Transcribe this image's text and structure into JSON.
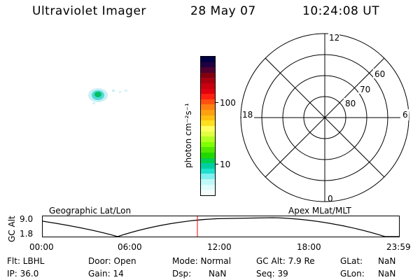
{
  "header": {
    "title": "Ultraviolet Imager",
    "date": "28 May 07",
    "time": "10:24:08 UT"
  },
  "colorbar": {
    "unit_label": "photon cm⁻²s⁻¹",
    "tick_100": "100",
    "tick_10": "10",
    "colors": [
      "#000044",
      "#200040",
      "#500030",
      "#800010",
      "#a80010",
      "#c80010",
      "#e00010",
      "#ff2010",
      "#ff5010",
      "#ff8010",
      "#ffa010",
      "#ffc010",
      "#ffe020",
      "#ffff60",
      "#e0ff40",
      "#b0ff20",
      "#80ff00",
      "#50e800",
      "#20d800",
      "#00d050",
      "#00d0a0",
      "#20e0d0",
      "#80f0f0",
      "#c0f8f8",
      "#e0fcfc",
      "#f4fefe"
    ]
  },
  "polar": {
    "labels": {
      "top": "12",
      "left": "18",
      "right": "6",
      "bottom": "0",
      "r60": "60",
      "r70": "70",
      "r80": "80"
    }
  },
  "timeline": {
    "left_title": "Geographic Lat/Lon",
    "right_title": "Apex MLat/MLT",
    "axis_name": "GC Alt",
    "y_top": "9.0",
    "y_bottom": "1.8",
    "x_ticks": [
      "00:00",
      "06:00",
      "12:00",
      "18:00",
      "23:59"
    ],
    "marker_hour": 10.4
  },
  "info": {
    "row1": {
      "flt": "Flt: LBHL",
      "door": "Door: Open",
      "mode": "Mode: Normal",
      "gcalt": "GC Alt: 7.9 Re",
      "glat_label": "GLat:",
      "glat_val": "NaN"
    },
    "row2": {
      "ip": "IP: 36.0",
      "gain": "Gain: 14",
      "dsp_label": "Dsp:",
      "dsp_val": "NaN",
      "seq": "Seq: 39",
      "glon_label": "GLon:",
      "glon_val": "NaN"
    }
  }
}
